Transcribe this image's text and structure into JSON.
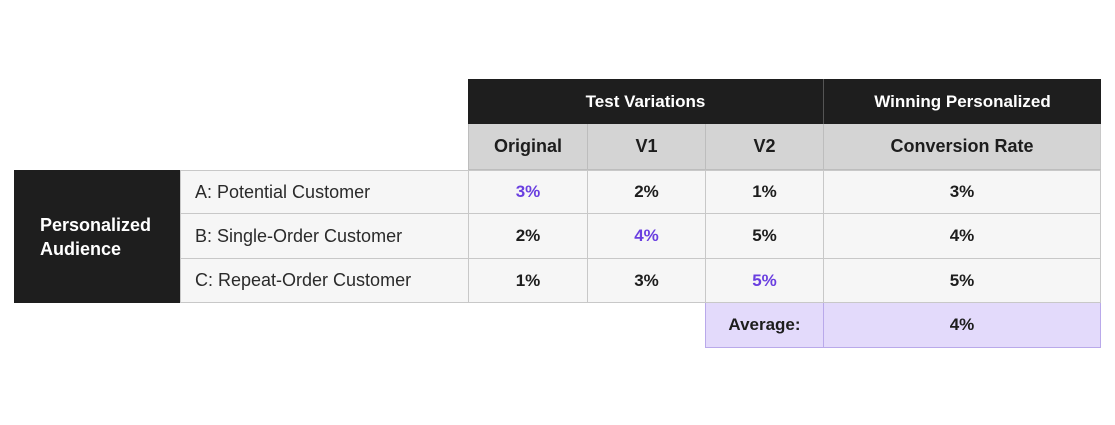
{
  "header": {
    "test_variations": "Test Variations",
    "winning_line1": "Winning Personalized",
    "winning_line2": "Conversion Rate"
  },
  "columns": [
    "Original",
    "V1",
    "V2"
  ],
  "audience_label_line1": "Personalized",
  "audience_label_line2": "Audience",
  "rows": [
    {
      "label": "A: Potential Customer",
      "values": [
        "3%",
        "2%",
        "1%"
      ],
      "winner_index": 0,
      "winning": "3%"
    },
    {
      "label": "B: Single-Order Customer",
      "values": [
        "2%",
        "4%",
        "5%"
      ],
      "winner_index": 1,
      "winning": "4%"
    },
    {
      "label": "C: Repeat-Order Customer",
      "values": [
        "1%",
        "3%",
        "5%"
      ],
      "winner_index": 2,
      "winning": "5%"
    }
  ],
  "average": {
    "label": "Average:",
    "value": "4%"
  },
  "colors": {
    "dark_header": "#1e1e1e",
    "subheader": "#d4d4d4",
    "winner_text": "#6a3fe0",
    "average_bg": "#e3dafb"
  }
}
